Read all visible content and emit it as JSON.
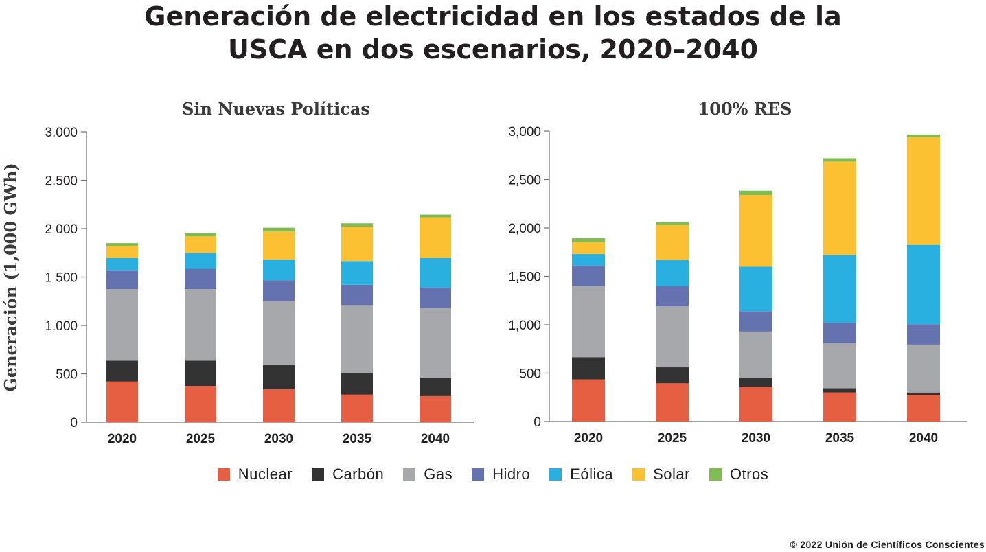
{
  "title": {
    "line1": "Generación de electricidad en los estados de la",
    "line2": "USCA en dos escenarios, 2020–2040"
  },
  "ylabel": "Generación (1,000 GWh)",
  "footer": "© 2022 Unión de Científicos Conscientes",
  "colors": {
    "Nuclear": "#e65f43",
    "Carbón": "#333333",
    "Gas": "#a6a8ab",
    "Hidro": "#6472b0",
    "Eólica": "#29b0e1",
    "Solar": "#fbc133",
    "Otros": "#7fbc54"
  },
  "legend": [
    "Nuclear",
    "Carbón",
    "Gas",
    "Hidro",
    "Eólica",
    "Solar",
    "Otros"
  ],
  "chart_data": [
    {
      "type": "bar",
      "stacked": true,
      "title": "Sin Nuevas Políticas",
      "ylabel": "Generación (1,000 GWh)",
      "ylim": [
        0,
        3000
      ],
      "yticks": [
        0,
        500,
        1000,
        1500,
        2000,
        2500,
        3000
      ],
      "ytick_labels": [
        "0",
        "500",
        "1.000",
        "1 500",
        "2 000",
        "2.500",
        "3.000"
      ],
      "categories": [
        "2020",
        "2025",
        "2030",
        "2035",
        "2040"
      ],
      "series": [
        {
          "name": "Nuclear",
          "values": [
            420,
            375,
            340,
            285,
            270
          ]
        },
        {
          "name": "Carbón",
          "values": [
            215,
            260,
            250,
            225,
            185
          ]
        },
        {
          "name": "Gas",
          "values": [
            740,
            740,
            660,
            700,
            725
          ]
        },
        {
          "name": "Hidro",
          "values": [
            195,
            210,
            215,
            210,
            210
          ]
        },
        {
          "name": "Eólica",
          "values": [
            125,
            165,
            215,
            245,
            305
          ]
        },
        {
          "name": "Solar",
          "values": [
            125,
            170,
            290,
            355,
            420
          ]
        },
        {
          "name": "Otros",
          "values": [
            30,
            35,
            40,
            35,
            30
          ]
        }
      ]
    },
    {
      "type": "bar",
      "stacked": true,
      "title": "100% RES",
      "ylim": [
        0,
        3000
      ],
      "yticks": [
        0,
        500,
        1000,
        1500,
        2000,
        2500,
        3000
      ],
      "ytick_labels": [
        "0",
        "500",
        "1,000",
        "1,500",
        "2,000",
        "2,500",
        "3,000"
      ],
      "categories": [
        "2020",
        "2025",
        "2030",
        "2035",
        "2040"
      ],
      "series": [
        {
          "name": "Nuclear",
          "values": [
            435,
            395,
            360,
            300,
            275
          ]
        },
        {
          "name": "Carbón",
          "values": [
            230,
            165,
            90,
            45,
            25
          ]
        },
        {
          "name": "Gas",
          "values": [
            735,
            630,
            480,
            465,
            495
          ]
        },
        {
          "name": "Hidro",
          "values": [
            210,
            210,
            210,
            210,
            210
          ]
        },
        {
          "name": "Eólica",
          "values": [
            120,
            270,
            460,
            700,
            820
          ]
        },
        {
          "name": "Solar",
          "values": [
            125,
            360,
            740,
            965,
            1110
          ]
        },
        {
          "name": "Otros",
          "values": [
            40,
            30,
            45,
            35,
            30
          ]
        }
      ]
    }
  ]
}
